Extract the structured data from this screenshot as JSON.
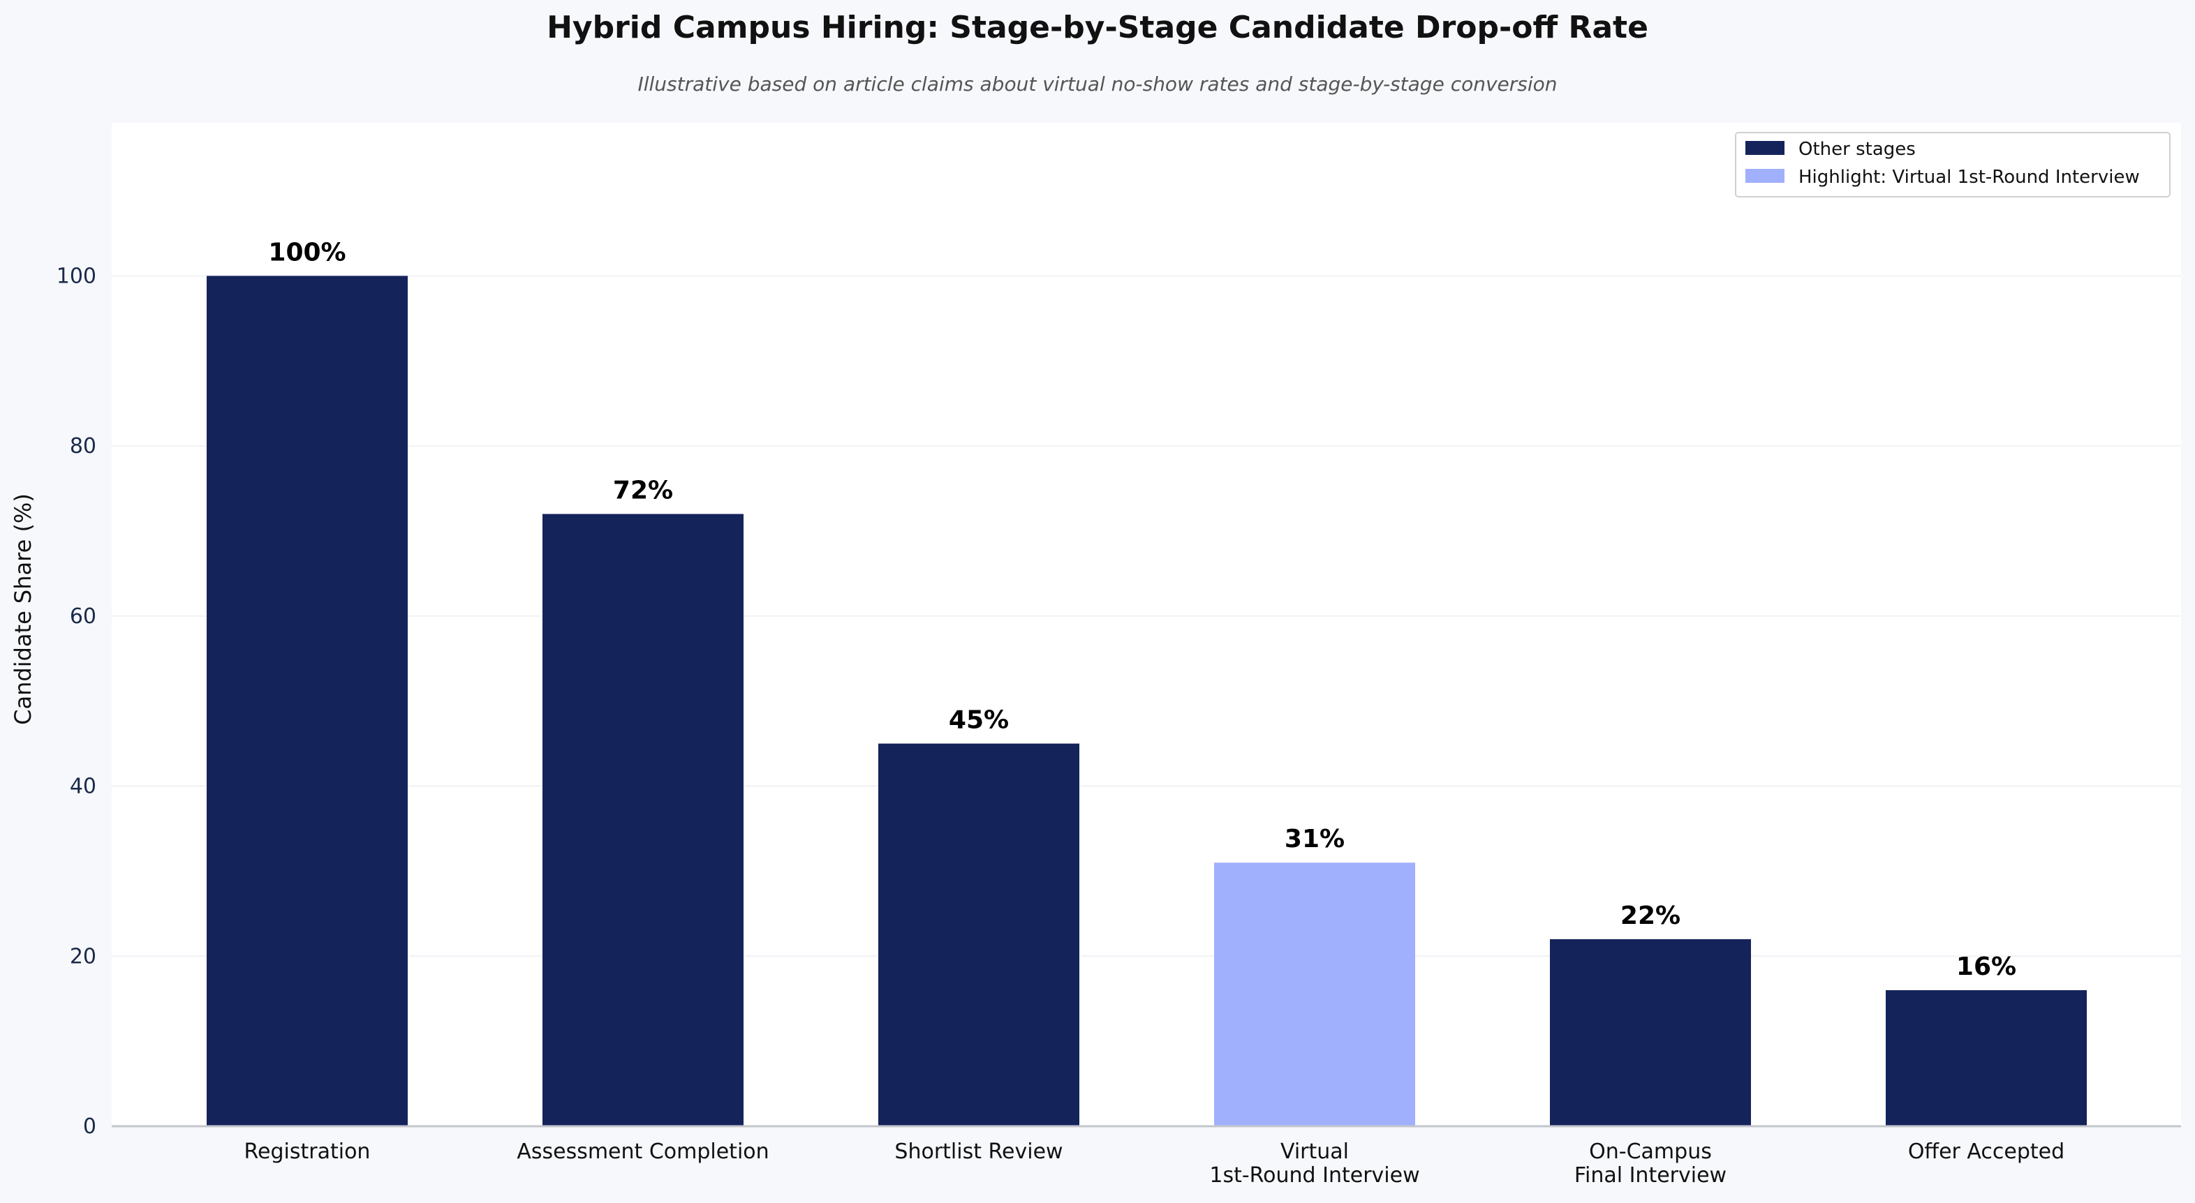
{
  "colors": {
    "page_background": "#f7f8fc",
    "plot_background": "#ffffff",
    "bar_default": "#15235b",
    "bar_highlight": "#a1b0fc",
    "grid": "#f1f2f6",
    "axis": "#c4c6cc"
  },
  "chart_data": {
    "type": "bar",
    "title": "Hybrid Campus Hiring: Stage-by-Stage Candidate Drop-off Rate",
    "subtitle": "Illustrative based on article claims about virtual no-show rates and stage-by-stage conversion",
    "xlabel": "",
    "ylabel": "Candidate Share (%)",
    "ylim": [
      0,
      118
    ],
    "yticks": [
      0,
      20,
      40,
      60,
      80,
      100
    ],
    "grid": true,
    "legend_position": "top-right",
    "categories": [
      [
        "Registration"
      ],
      [
        "Assessment Completion"
      ],
      [
        "Shortlist Review"
      ],
      [
        "Virtual",
        "1st-Round Interview"
      ],
      [
        "On-Campus",
        "Final Interview"
      ],
      [
        "Offer Accepted"
      ]
    ],
    "values": [
      100,
      72,
      45,
      31,
      22,
      16
    ],
    "value_labels": [
      "100%",
      "72%",
      "45%",
      "31%",
      "22%",
      "16%"
    ],
    "highlight_index": 3,
    "legend": [
      {
        "label": "Other stages",
        "color": "#15235b"
      },
      {
        "label": "Highlight: Virtual 1st-Round Interview",
        "color": "#a1b0fc"
      }
    ]
  }
}
